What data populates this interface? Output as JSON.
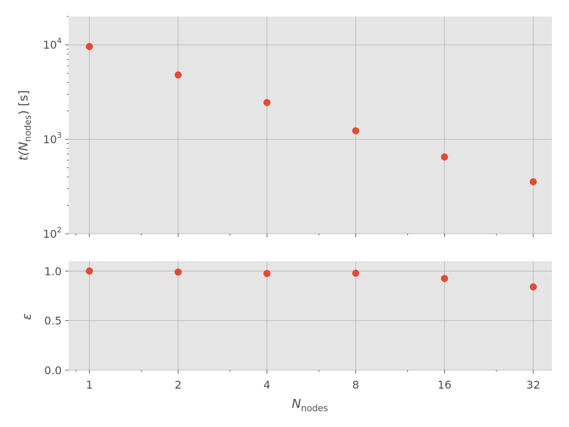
{
  "chart_data": [
    {
      "type": "scatter",
      "xscale": "log2",
      "yscale": "log10",
      "xlim": [
        0.85,
        37
      ],
      "ylim": [
        100,
        20000
      ],
      "x": [
        1,
        2,
        4,
        8,
        16,
        32
      ],
      "y": [
        9600,
        4800,
        2450,
        1230,
        650,
        355
      ],
      "ylabel": "t(N_nodes) [s]",
      "ylabel_parts": {
        "main": "t(N",
        "sub": "nodes",
        "tail": ") [s]"
      },
      "yticks": [
        100,
        1000,
        10000
      ],
      "ytick_labels": [
        {
          "base": "10",
          "exp": "2"
        },
        {
          "base": "10",
          "exp": "3"
        },
        {
          "base": "10",
          "exp": "4"
        }
      ],
      "grid": true,
      "marker_color": "#e24a33"
    },
    {
      "type": "scatter",
      "xscale": "log2",
      "xlim": [
        0.85,
        37
      ],
      "ylim": [
        0,
        1.1
      ],
      "x": [
        1,
        2,
        4,
        8,
        16,
        32
      ],
      "y": [
        1.0,
        0.99,
        0.975,
        0.978,
        0.925,
        0.84
      ],
      "ylabel": "ε",
      "yticks": [
        0.0,
        0.5,
        1.0
      ],
      "ytick_labels": [
        "0.0",
        "0.5",
        "1.0"
      ],
      "xticks": [
        1,
        2,
        4,
        8,
        16,
        32
      ],
      "xtick_labels": [
        "1",
        "2",
        "4",
        "8",
        "16",
        "32"
      ],
      "xlabel": "N_nodes",
      "xlabel_parts": {
        "main": "N",
        "sub": "nodes"
      },
      "grid": true,
      "marker_color": "#e24a33"
    }
  ]
}
